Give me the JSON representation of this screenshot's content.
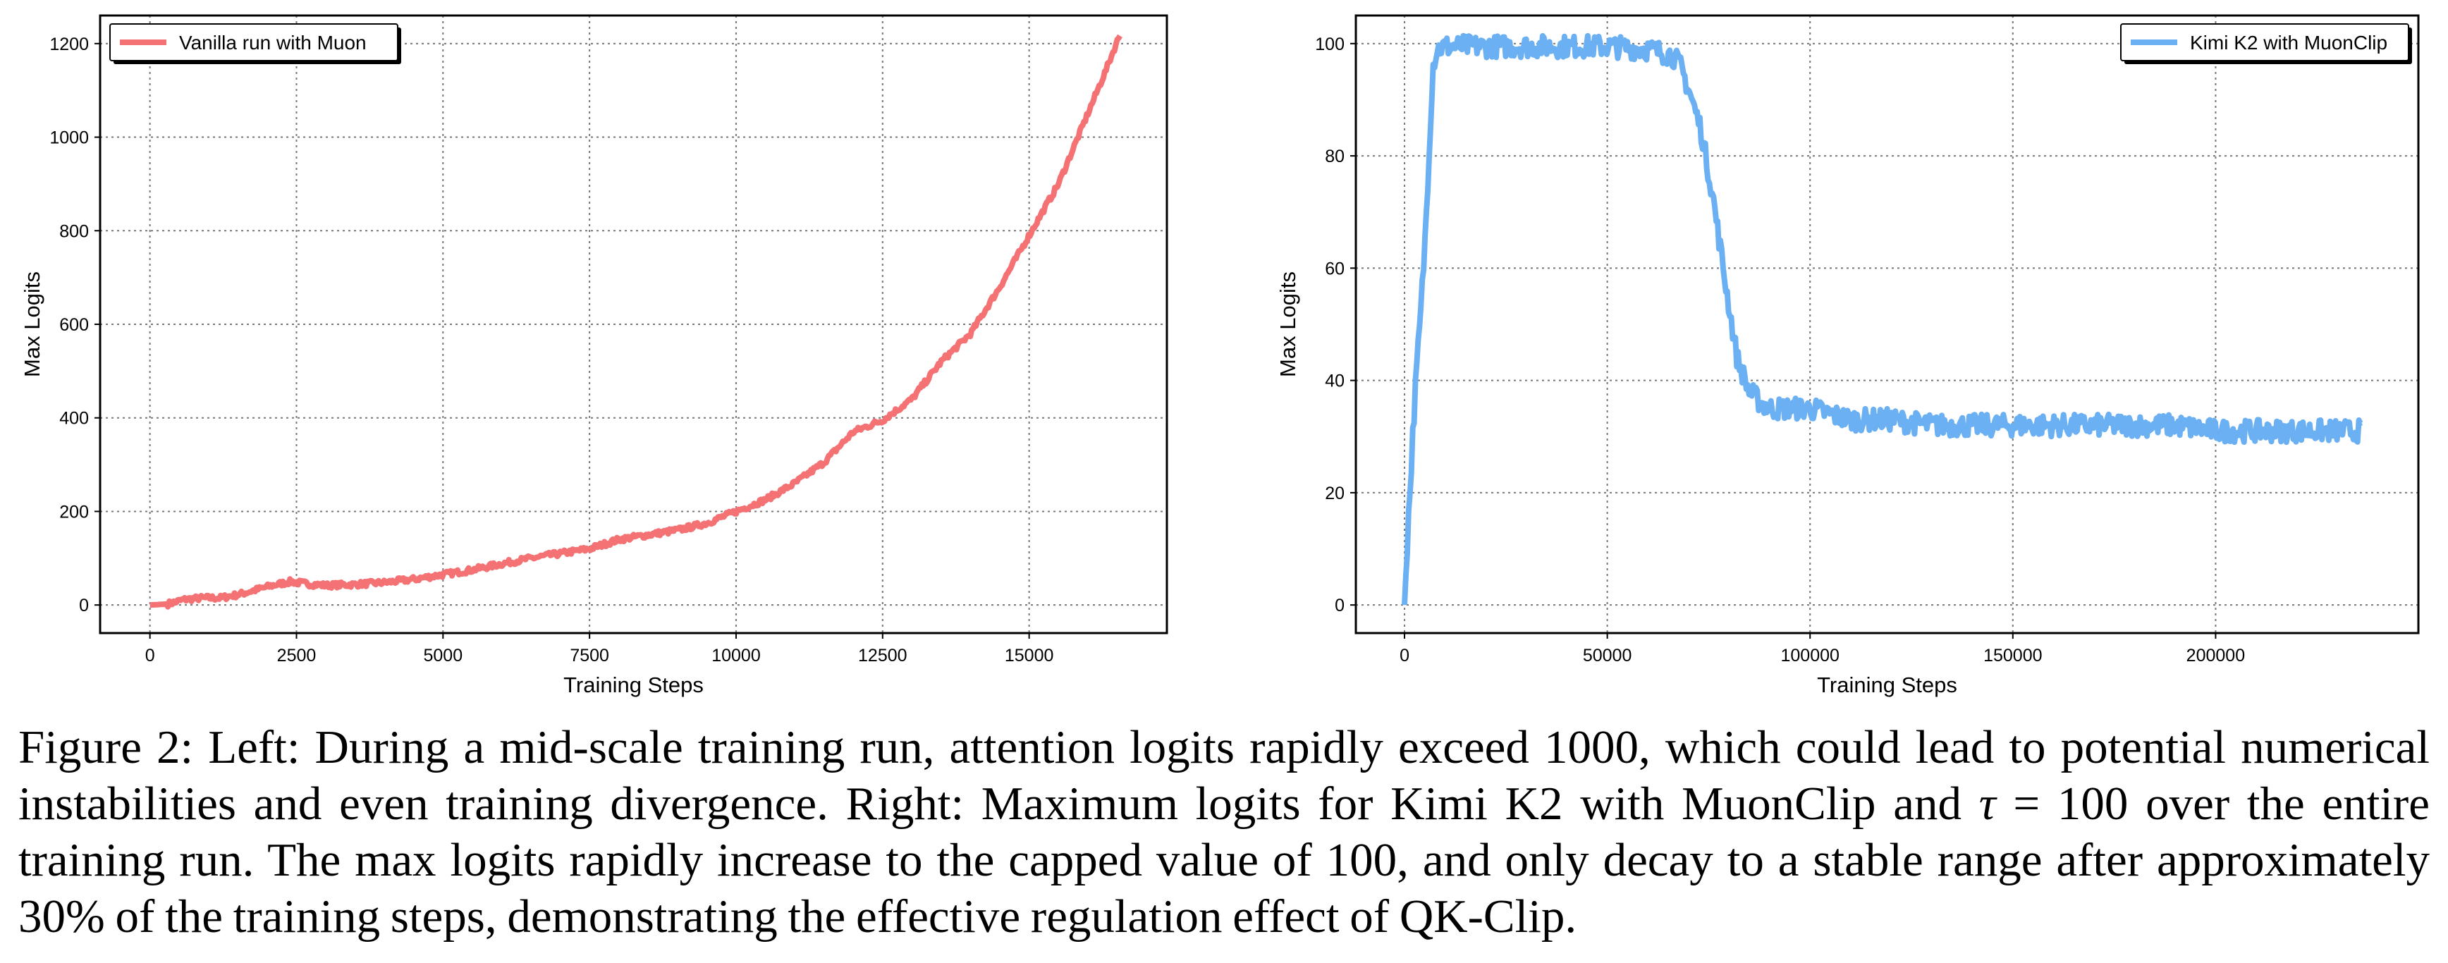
{
  "caption": {
    "prefix": "Figure 2: Left: During a mid-scale training run, attention logits rapidly exceed 1000, which could lead to potential numerical instabilities and even training divergence. Right: Maximum logits for Kimi K2 with MuonClip and ",
    "tau_symbol": "τ",
    "suffix": " = 100 over the entire training run. The max logits rapidly increase to the capped value of 100, and only decay to a stable range after approximately 30% of the training steps, demonstrating the effective regulation effect of QK-Clip."
  },
  "chart_data": [
    {
      "type": "line",
      "title": "",
      "xlabel": "Training Steps",
      "ylabel": "Max Logits",
      "xlim": [
        -850,
        17350
      ],
      "ylim": [
        -60,
        1260
      ],
      "xticks": [
        0,
        2500,
        5000,
        7500,
        10000,
        12500,
        15000
      ],
      "yticks": [
        0,
        200,
        400,
        600,
        800,
        1000,
        1200
      ],
      "grid": true,
      "legend": {
        "position": "top-left",
        "entries": [
          "Vanilla run with Muon"
        ]
      },
      "series": [
        {
          "name": "Vanilla run with Muon",
          "color": "#f47174",
          "x": [
            0,
            300,
            600,
            900,
            1200,
            1500,
            1800,
            2100,
            2400,
            2700,
            3000,
            3500,
            4000,
            4500,
            5000,
            5500,
            6000,
            6500,
            7000,
            7500,
            8000,
            8500,
            9000,
            9500,
            10000,
            10500,
            11000,
            11500,
            12000,
            12500,
            13000,
            13500,
            14000,
            14500,
            15000,
            15500,
            16000,
            16300,
            16550
          ],
          "y": [
            0,
            2,
            12,
            15,
            15,
            22,
            32,
            42,
            50,
            45,
            42,
            44,
            48,
            55,
            65,
            75,
            88,
            100,
            110,
            120,
            140,
            150,
            160,
            175,
            200,
            225,
            260,
            305,
            370,
            395,
            440,
            520,
            580,
            680,
            790,
            900,
            1050,
            1140,
            1220
          ],
          "noise": 6
        }
      ]
    },
    {
      "type": "line",
      "title": "",
      "xlabel": "Training Steps",
      "ylabel": "Max Logits",
      "xlim": [
        -12000,
        250000
      ],
      "ylim": [
        -5,
        105
      ],
      "xticks": [
        0,
        50000,
        100000,
        150000,
        200000
      ],
      "yticks": [
        0,
        20,
        40,
        60,
        80,
        100
      ],
      "grid": true,
      "legend": {
        "position": "top-right",
        "entries": [
          "Kimi K2 with MuonClip"
        ]
      },
      "series": [
        {
          "name": "Kimi K2 with MuonClip",
          "color": "#6ab0f3",
          "x": [
            0,
            500,
            1000,
            1500,
            2000,
            3000,
            4000,
            5000,
            6000,
            7000,
            8000,
            10000,
            20000,
            30000,
            40000,
            50000,
            60000,
            66000,
            68000,
            70000,
            73000,
            76000,
            79000,
            82000,
            85000,
            88000,
            90000,
            95000,
            100000,
            105000,
            110000,
            120000,
            130000,
            140000,
            150000,
            160000,
            170000,
            180000,
            190000,
            200000,
            210000,
            220000,
            230000,
            236000
          ],
          "y": [
            0,
            8,
            16,
            22,
            30,
            42,
            52,
            64,
            80,
            96,
            99,
            99.5,
            99.5,
            99.5,
            99.5,
            99.5,
            99,
            98,
            96,
            92,
            85,
            73,
            58,
            44,
            38,
            36,
            35,
            35,
            35,
            34,
            33,
            33,
            32,
            32,
            32,
            32,
            32,
            32,
            32,
            31,
            31,
            31,
            31,
            31
          ],
          "noise": 2
        }
      ]
    }
  ]
}
